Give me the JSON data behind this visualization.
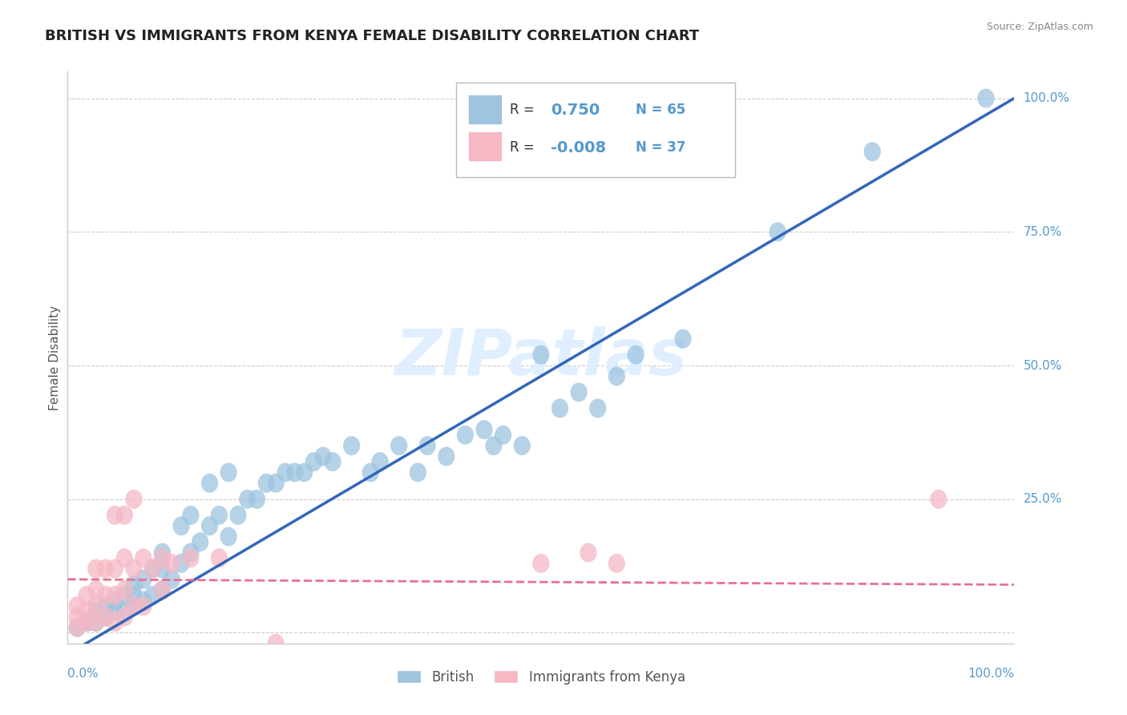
{
  "title": "BRITISH VS IMMIGRANTS FROM KENYA FEMALE DISABILITY CORRELATION CHART",
  "source": "Source: ZipAtlas.com",
  "ylabel": "Female Disability",
  "xlim": [
    0,
    1
  ],
  "ylim": [
    -0.02,
    1.05
  ],
  "r_british": 0.75,
  "n_british": 65,
  "r_kenya": -0.008,
  "n_kenya": 37,
  "ytick_vals": [
    0.0,
    0.25,
    0.5,
    0.75,
    1.0
  ],
  "ytick_labels": [
    "",
    "25.0%",
    "50.0%",
    "75.0%",
    "100.0%"
  ],
  "grid_color": "#cccccc",
  "blue_color": "#9ec4df",
  "blue_line_color": "#3366bb",
  "pink_color": "#f5b8c4",
  "pink_line_color": "#e87090",
  "watermark": "ZIPatlas",
  "title_color": "#222222",
  "axis_label_color": "#5599cc",
  "british_x": [
    0.01,
    0.02,
    0.02,
    0.03,
    0.03,
    0.04,
    0.04,
    0.05,
    0.05,
    0.06,
    0.06,
    0.07,
    0.07,
    0.07,
    0.08,
    0.08,
    0.09,
    0.09,
    0.1,
    0.1,
    0.1,
    0.11,
    0.12,
    0.12,
    0.13,
    0.13,
    0.14,
    0.15,
    0.15,
    0.16,
    0.17,
    0.17,
    0.18,
    0.19,
    0.2,
    0.21,
    0.22,
    0.23,
    0.24,
    0.25,
    0.26,
    0.27,
    0.28,
    0.3,
    0.32,
    0.33,
    0.35,
    0.37,
    0.38,
    0.4,
    0.42,
    0.44,
    0.45,
    0.46,
    0.48,
    0.5,
    0.52,
    0.54,
    0.56,
    0.58,
    0.6,
    0.65,
    0.75,
    0.85,
    0.97
  ],
  "british_y": [
    0.01,
    0.02,
    0.02,
    0.02,
    0.04,
    0.03,
    0.05,
    0.04,
    0.06,
    0.04,
    0.07,
    0.05,
    0.07,
    0.09,
    0.06,
    0.1,
    0.07,
    0.12,
    0.08,
    0.12,
    0.15,
    0.1,
    0.13,
    0.2,
    0.15,
    0.22,
    0.17,
    0.2,
    0.28,
    0.22,
    0.18,
    0.3,
    0.22,
    0.25,
    0.25,
    0.28,
    0.28,
    0.3,
    0.3,
    0.3,
    0.32,
    0.33,
    0.32,
    0.35,
    0.3,
    0.32,
    0.35,
    0.3,
    0.35,
    0.33,
    0.37,
    0.38,
    0.35,
    0.37,
    0.35,
    0.52,
    0.42,
    0.45,
    0.42,
    0.48,
    0.52,
    0.55,
    0.75,
    0.9,
    1.0
  ],
  "kenya_x": [
    0.01,
    0.01,
    0.01,
    0.02,
    0.02,
    0.02,
    0.03,
    0.03,
    0.03,
    0.03,
    0.04,
    0.04,
    0.04,
    0.05,
    0.05,
    0.05,
    0.05,
    0.06,
    0.06,
    0.06,
    0.06,
    0.07,
    0.07,
    0.07,
    0.08,
    0.08,
    0.09,
    0.1,
    0.1,
    0.11,
    0.13,
    0.16,
    0.22,
    0.5,
    0.55,
    0.58,
    0.92
  ],
  "kenya_y": [
    0.01,
    0.03,
    0.05,
    0.02,
    0.04,
    0.07,
    0.02,
    0.05,
    0.08,
    0.12,
    0.03,
    0.07,
    0.12,
    0.02,
    0.07,
    0.12,
    0.22,
    0.03,
    0.08,
    0.14,
    0.22,
    0.05,
    0.12,
    0.25,
    0.05,
    0.14,
    0.12,
    0.08,
    0.14,
    0.13,
    0.14,
    0.14,
    -0.02,
    0.13,
    0.15,
    0.13,
    0.25
  ],
  "brit_line_x": [
    0.0,
    1.0
  ],
  "brit_line_y": [
    -0.04,
    1.0
  ],
  "ken_line_x": [
    0.0,
    1.0
  ],
  "ken_line_y": [
    0.1,
    0.09
  ]
}
